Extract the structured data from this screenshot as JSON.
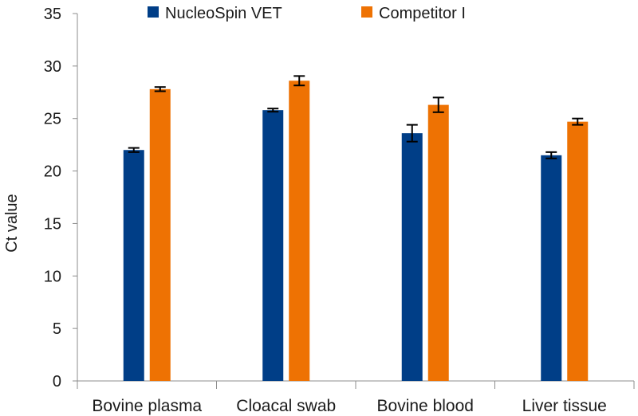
{
  "chart_data": {
    "type": "bar",
    "title": "",
    "xlabel": "",
    "ylabel": "Ct value",
    "ylim": [
      0,
      35
    ],
    "yticks": [
      0,
      5,
      10,
      15,
      20,
      25,
      30,
      35
    ],
    "ytick_labels": [
      "0",
      "5",
      "10",
      "15",
      "20",
      "25",
      "30",
      "35"
    ],
    "grid": false,
    "legend_position": "top",
    "categories": [
      "Bovine plasma",
      "Cloacal swab",
      "Bovine blood",
      "Liver tissue"
    ],
    "series": [
      {
        "name": "NucleoSpin VET",
        "color": "#003e87",
        "values": [
          22.0,
          25.8,
          23.6,
          21.5
        ],
        "errors": [
          0.2,
          0.15,
          0.8,
          0.3
        ]
      },
      {
        "name": "Competitor I",
        "color": "#ee7203",
        "values": [
          27.8,
          28.6,
          26.3,
          24.7
        ],
        "errors": [
          0.2,
          0.45,
          0.7,
          0.3
        ]
      }
    ]
  }
}
